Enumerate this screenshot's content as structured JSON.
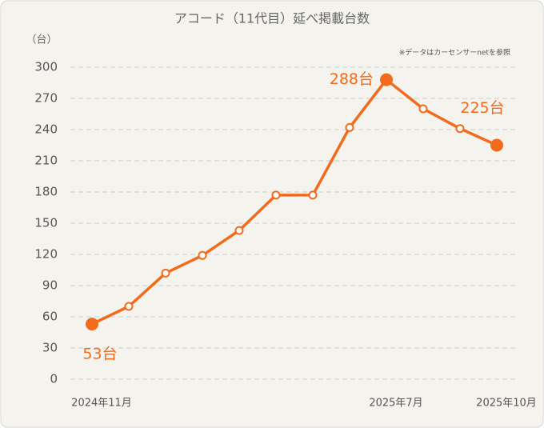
{
  "chart_data": {
    "type": "line",
    "title": "アコード（11代目）延べ掲載台数",
    "y_label": "（台）",
    "note": "※データはカーセンサーnetを参照",
    "categories": [
      "2024年11月",
      null,
      null,
      null,
      null,
      null,
      null,
      null,
      "2025年7月",
      null,
      null,
      "2025年10月"
    ],
    "series": [
      {
        "name": "アコード（11代目）",
        "color": "#f26a1b",
        "values": [
          53,
          70,
          102,
          119,
          143,
          177,
          177,
          242,
          288,
          260,
          241,
          225
        ],
        "value_labels": [
          "53台",
          null,
          null,
          null,
          null,
          null,
          null,
          null,
          "288台",
          null,
          null,
          "225台"
        ]
      }
    ],
    "ylim": [
      0,
      300
    ],
    "yticks": [
      0,
      30,
      60,
      90,
      120,
      150,
      180,
      210,
      240,
      270,
      300
    ],
    "grid": true
  }
}
